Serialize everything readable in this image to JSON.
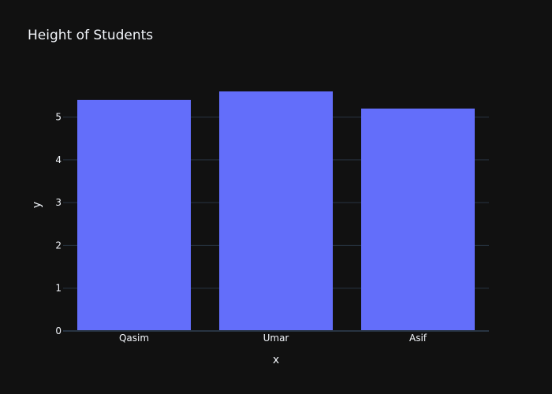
{
  "chart_data": {
    "type": "bar",
    "title": "Height of Students",
    "xlabel": "x",
    "ylabel": "y",
    "categories": [
      "Qasim",
      "Umar",
      "Asif"
    ],
    "values": [
      5.4,
      5.6,
      5.2
    ],
    "ylim": [
      0,
      5.895
    ],
    "yticks": [
      0,
      1,
      2,
      3,
      4,
      5
    ],
    "grid": true,
    "legend": "none"
  },
  "colors": {
    "background": "#111111",
    "bar": "#636efa",
    "grid": "#283442",
    "text": "#f2f5fa"
  }
}
